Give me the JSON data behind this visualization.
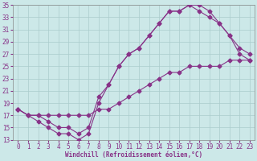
{
  "xlabel": "Windchill (Refroidissement éolien,°C)",
  "bg_color": "#cce8e8",
  "line_color": "#883388",
  "grid_color": "#aacccc",
  "xlim": [
    -0.5,
    23.5
  ],
  "ylim": [
    13,
    35
  ],
  "yticks": [
    13,
    15,
    17,
    19,
    21,
    23,
    25,
    27,
    29,
    31,
    33,
    35
  ],
  "xticks": [
    0,
    1,
    2,
    3,
    4,
    5,
    6,
    7,
    8,
    9,
    10,
    11,
    12,
    13,
    14,
    15,
    16,
    17,
    18,
    19,
    20,
    21,
    22,
    23
  ],
  "line1_x": [
    0,
    1,
    2,
    3,
    4,
    5,
    6,
    7,
    8,
    9,
    10,
    11,
    12,
    13,
    14,
    15,
    16,
    17,
    18,
    19,
    20,
    21,
    22,
    23
  ],
  "line1_y": [
    18,
    17,
    16,
    15,
    14,
    14,
    13,
    14,
    19,
    22,
    25,
    27,
    28,
    30,
    32,
    34,
    34,
    35,
    35,
    34,
    32,
    30,
    27,
    26
  ],
  "line2_x": [
    0,
    1,
    2,
    3,
    4,
    5,
    6,
    7,
    8,
    9,
    10,
    11,
    12,
    13,
    14,
    15,
    16,
    17,
    18,
    19,
    20,
    21,
    22,
    23
  ],
  "line2_y": [
    18,
    17,
    17,
    16,
    15,
    15,
    14,
    15,
    20,
    22,
    25,
    27,
    28,
    30,
    32,
    34,
    34,
    35,
    34,
    33,
    32,
    30,
    28,
    27
  ],
  "line3_x": [
    0,
    1,
    2,
    3,
    4,
    5,
    6,
    7,
    8,
    9,
    10,
    11,
    12,
    13,
    14,
    15,
    16,
    17,
    18,
    19,
    20,
    21,
    22,
    23
  ],
  "line3_y": [
    18,
    17,
    17,
    17,
    17,
    17,
    17,
    17,
    18,
    18,
    19,
    20,
    21,
    22,
    23,
    24,
    24,
    25,
    25,
    25,
    25,
    26,
    26,
    26
  ],
  "markersize": 2.5,
  "linewidth": 0.8,
  "tick_fontsize": 5.5,
  "xlabel_fontsize": 5.5
}
